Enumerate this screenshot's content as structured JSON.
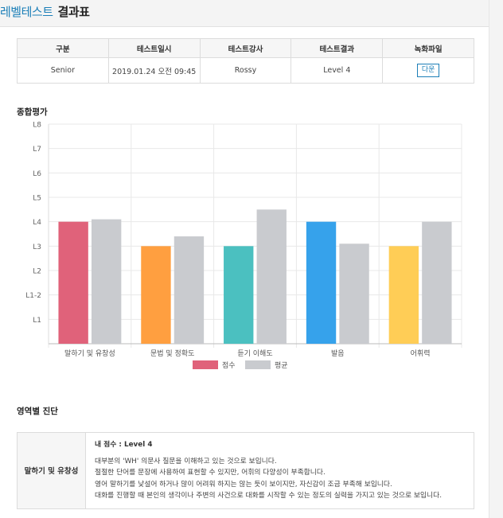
{
  "header": {
    "title_part1": "레벨테스트",
    "title_part2": "결과표"
  },
  "info_table": {
    "headers": [
      "구분",
      "테스트일시",
      "테스트강사",
      "테스트결과",
      "녹화파일"
    ],
    "row": {
      "category": "Senior",
      "datetime": "2019.01.24  오전 09:45",
      "teacher": "Rossy",
      "result": "Level 4",
      "download_label": "다운"
    }
  },
  "summary": {
    "title": "종합평가"
  },
  "chart_data": {
    "type": "bar",
    "categories": [
      "말하기 및 유창성",
      "문법 및 정확도",
      "듣기 이해도",
      "발음",
      "어휘력"
    ],
    "y_levels": [
      "",
      "L1",
      "L1-2",
      "L2",
      "L3",
      "L4",
      "L5",
      "L6",
      "L7",
      "L8"
    ],
    "ylim": [
      0,
      9
    ],
    "grid": true,
    "legend_position": "bottom",
    "series": [
      {
        "name": "점수",
        "values": [
          5,
          4,
          4,
          5,
          4
        ],
        "colors": [
          "#e0627a",
          "#ff9f40",
          "#4bc0c0",
          "#36a2eb",
          "#ffcd56"
        ]
      },
      {
        "name": "평균",
        "values": [
          5.1,
          4.4,
          5.5,
          4.1,
          5.0
        ],
        "colors": [
          "#c9cbcf",
          "#c9cbcf",
          "#c9cbcf",
          "#c9cbcf",
          "#c9cbcf"
        ]
      }
    ]
  },
  "diagnosis": {
    "title": "영역별 진단",
    "rows": [
      {
        "area": "말하기 및 유창성",
        "score_label": "내 점수 : Level 4",
        "lines": [
          "대부분의 'WH' 의문사 질문을 이해하고 있는 것으로 보입니다.",
          "절절한 단어를 문장에 사용하여 표현할 수 있지만, 어휘의 다양성이 부족합니다.",
          "영어 말하기를 낯설어 하거나 많이 어려워 하지는 않는 듯이 보이지만, 자신감이 조금 부족해 보입니다.",
          "대화를 진행할 때 본인의 생각이나 주변의 사건으로 대화를 시작할 수 있는 정도의 실력을 가지고 있는 것으로 보입니다."
        ]
      }
    ]
  }
}
